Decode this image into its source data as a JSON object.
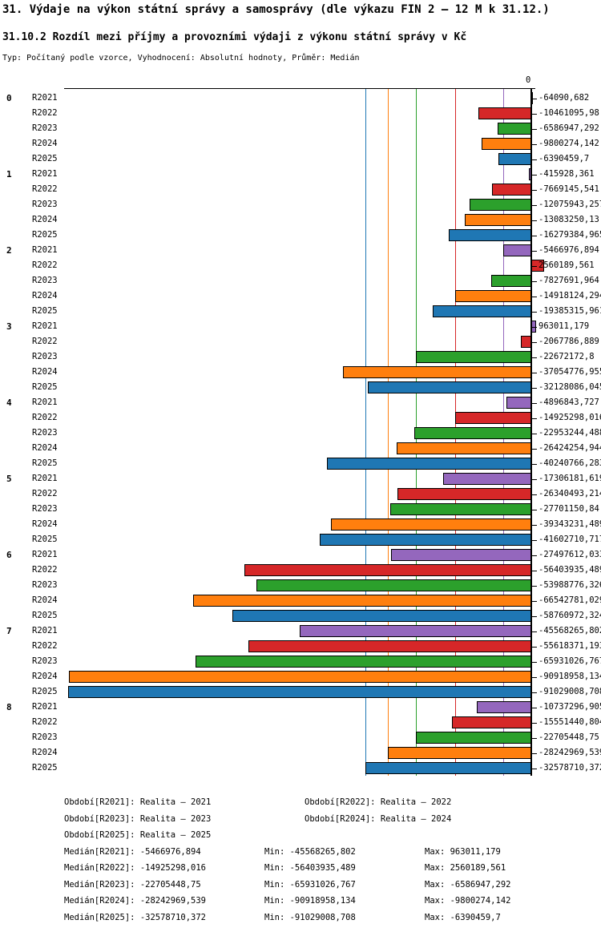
{
  "title": "31. Výdaje na výkon státní správy a samosprávy (dle výkazu FIN 2 – 12 M k 31.12.)",
  "subtitle": "31.10.2 Rozdíl mezi příjmy a provozními výdaji z výkonu státní správy v Kč",
  "meta": "Typ: Počítaný podle vzorce, Vyhodnocení: Absolutní hodnoty, Průměr: Medián",
  "chart_data": {
    "type": "bar",
    "orientation": "horizontal",
    "title": "31.10.2 Rozdíl mezi příjmy a provozními výdaji z výkonu státní správy v Kč",
    "xlabel": "",
    "ylabel": "",
    "value_unit": "Kč",
    "axis_zero_label": "0",
    "xlim": [
      -92000000,
      2600000
    ],
    "grid": "median-lines-per-series",
    "legend_position": "bottom",
    "series": [
      {
        "name": "R2021",
        "color": "#9467bd",
        "median": -5466976.894
      },
      {
        "name": "R2022",
        "color": "#d62728",
        "median": -14925298.016
      },
      {
        "name": "R2023",
        "color": "#2ca02c",
        "median": -22705448.75
      },
      {
        "name": "R2024",
        "color": "#ff7f0e",
        "median": -28242969.539
      },
      {
        "name": "R2025",
        "color": "#1f77b4",
        "median": -32578710.372
      }
    ],
    "medians": [
      -5466976.894,
      -14925298.016,
      -22705448.75,
      -28242969.539,
      -32578710.372
    ],
    "groups": [
      {
        "label": "0",
        "values": [
          -64090.682,
          -10461095.98,
          -6586947.292,
          -9800274.142,
          -6390459.7
        ],
        "value_labels": [
          "-64090,682",
          "-10461095,98",
          "-6586947,292",
          "-9800274,142",
          "-6390459,7"
        ]
      },
      {
        "label": "1",
        "values": [
          -415928.361,
          -7669145.541,
          -12075943.257,
          -13083250.13,
          -16279384.965
        ],
        "value_labels": [
          "-415928,361",
          "-7669145,541",
          "-12075943,257",
          "-13083250,13",
          "-16279384,965"
        ]
      },
      {
        "label": "2",
        "values": [
          -5466976.894,
          2560189.561,
          -7827691.964,
          -14918124.294,
          -19385315.961
        ],
        "value_labels": [
          "-5466976,894",
          "2560189,561",
          "-7827691,964",
          "-14918124,294",
          "-19385315,961"
        ]
      },
      {
        "label": "3",
        "values": [
          963011.179,
          -2067786.889,
          -22672172.8,
          -37054776.955,
          -32128086.045
        ],
        "value_labels": [
          "963011,179",
          "-2067786,889",
          "-22672172,8",
          "-37054776,955",
          "-32128086,045"
        ]
      },
      {
        "label": "4",
        "values": [
          -4896843.727,
          -14925298.016,
          -22953244.488,
          -26424254.944,
          -40240766.283
        ],
        "value_labels": [
          "-4896843,727",
          "-14925298,016",
          "-22953244,488",
          "-26424254,944",
          "-40240766,283"
        ]
      },
      {
        "label": "5",
        "values": [
          -17306181.619,
          -26340493.214,
          -27701150.84,
          -39343231.489,
          -41602710.717
        ],
        "value_labels": [
          "-17306181,619",
          "-26340493,214",
          "-27701150,84",
          "-39343231,489",
          "-41602710,717"
        ]
      },
      {
        "label": "6",
        "values": [
          -27497612.033,
          -56403935.489,
          -53988776.326,
          -66542781.029,
          -58760972.324
        ],
        "value_labels": [
          "-27497612,033",
          "-56403935,489",
          "-53988776,326",
          "-66542781,029",
          "-58760972,324"
        ]
      },
      {
        "label": "7",
        "values": [
          -45568265.802,
          -55618371.193,
          -65931026.767,
          -90918958.134,
          -91029008.708
        ],
        "value_labels": [
          "-45568265,802",
          "-55618371,193",
          "-65931026,767",
          "-90918958,134",
          "-91029008,708"
        ]
      },
      {
        "label": "8",
        "values": [
          -10737296.905,
          -15551440.804,
          -22705448.75,
          -28242969.539,
          -32578710.372
        ],
        "value_labels": [
          "-10737296,905",
          "-15551440,804",
          "-22705448,75",
          "-28242969,539",
          "-32578710,372"
        ]
      }
    ]
  },
  "legend_items": [
    "Období[R2021]: Realita – 2021",
    "Období[R2022]: Realita – 2022",
    "Období[R2023]: Realita – 2023",
    "Období[R2024]: Realita – 2024",
    "Období[R2025]: Realita – 2025"
  ],
  "stats_rows": [
    {
      "median": "Medián[R2021]: -5466976,894",
      "min": "Min: -45568265,802",
      "max": "Max: 963011,179"
    },
    {
      "median": "Medián[R2022]: -14925298,016",
      "min": "Min: -56403935,489",
      "max": "Max: 2560189,561"
    },
    {
      "median": "Medián[R2023]: -22705448,75",
      "min": "Min: -65931026,767",
      "max": "Max: -6586947,292"
    },
    {
      "median": "Medián[R2024]: -28242969,539",
      "min": "Min: -90918958,134",
      "max": "Max: -9800274,142"
    },
    {
      "median": "Medián[R2025]: -32578710,372",
      "min": "Min: -91029008,708",
      "max": "Max: -6390459,7"
    }
  ]
}
